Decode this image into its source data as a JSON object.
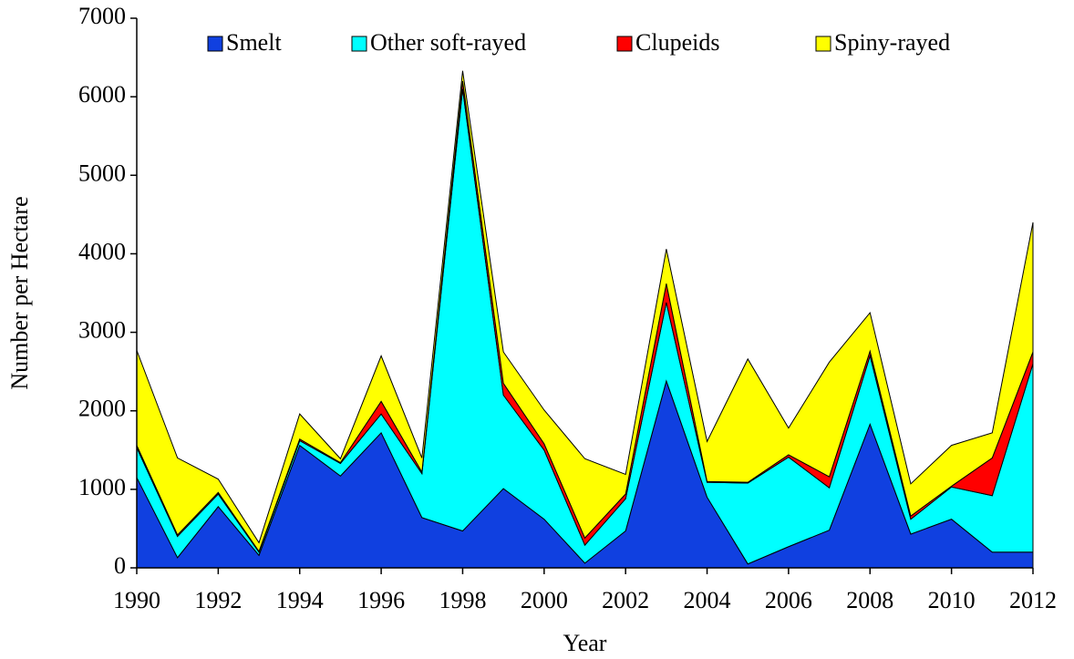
{
  "chart_data": {
    "type": "stacked-area",
    "x_label": "Year",
    "y_label": "Number per Hectare",
    "x": [
      1990,
      1991,
      1992,
      1993,
      1994,
      1995,
      1996,
      1997,
      1998,
      1999,
      2000,
      2001,
      2002,
      2003,
      2004,
      2005,
      2006,
      2007,
      2008,
      2009,
      2010,
      2011,
      2012
    ],
    "xlim": [
      1990,
      2012
    ],
    "xticks": [
      1990,
      1992,
      1994,
      1996,
      1998,
      2000,
      2002,
      2004,
      2006,
      2008,
      2010,
      2012
    ],
    "ylim": [
      0,
      7000
    ],
    "yticks": [
      0,
      1000,
      2000,
      3000,
      4000,
      5000,
      6000,
      7000
    ],
    "grid": false,
    "legend": "top",
    "series": [
      {
        "name": "Smelt",
        "color": "#1040e0",
        "values": [
          1150,
          130,
          780,
          160,
          1560,
          1170,
          1720,
          640,
          470,
          1010,
          620,
          60,
          470,
          2380,
          900,
          50,
          270,
          480,
          1830,
          430,
          620,
          200,
          200
        ]
      },
      {
        "name": "Other soft-rayed",
        "color": "#00ffff",
        "values": [
          380,
          270,
          160,
          40,
          60,
          160,
          240,
          560,
          5630,
          1190,
          880,
          230,
          410,
          1000,
          190,
          1030,
          1140,
          540,
          870,
          190,
          410,
          720,
          2400
        ]
      },
      {
        "name": "Clupeids",
        "color": "#ff0000",
        "values": [
          30,
          20,
          20,
          10,
          20,
          10,
          160,
          20,
          100,
          150,
          80,
          90,
          60,
          240,
          10,
          10,
          30,
          140,
          60,
          40,
          10,
          480,
          150
        ]
      },
      {
        "name": "Spiny-rayed",
        "color": "#ffff00",
        "values": [
          1210,
          980,
          170,
          110,
          320,
          50,
          580,
          180,
          130,
          400,
          430,
          1010,
          250,
          440,
          510,
          1570,
          340,
          1460,
          490,
          410,
          520,
          320,
          1650
        ]
      }
    ]
  }
}
